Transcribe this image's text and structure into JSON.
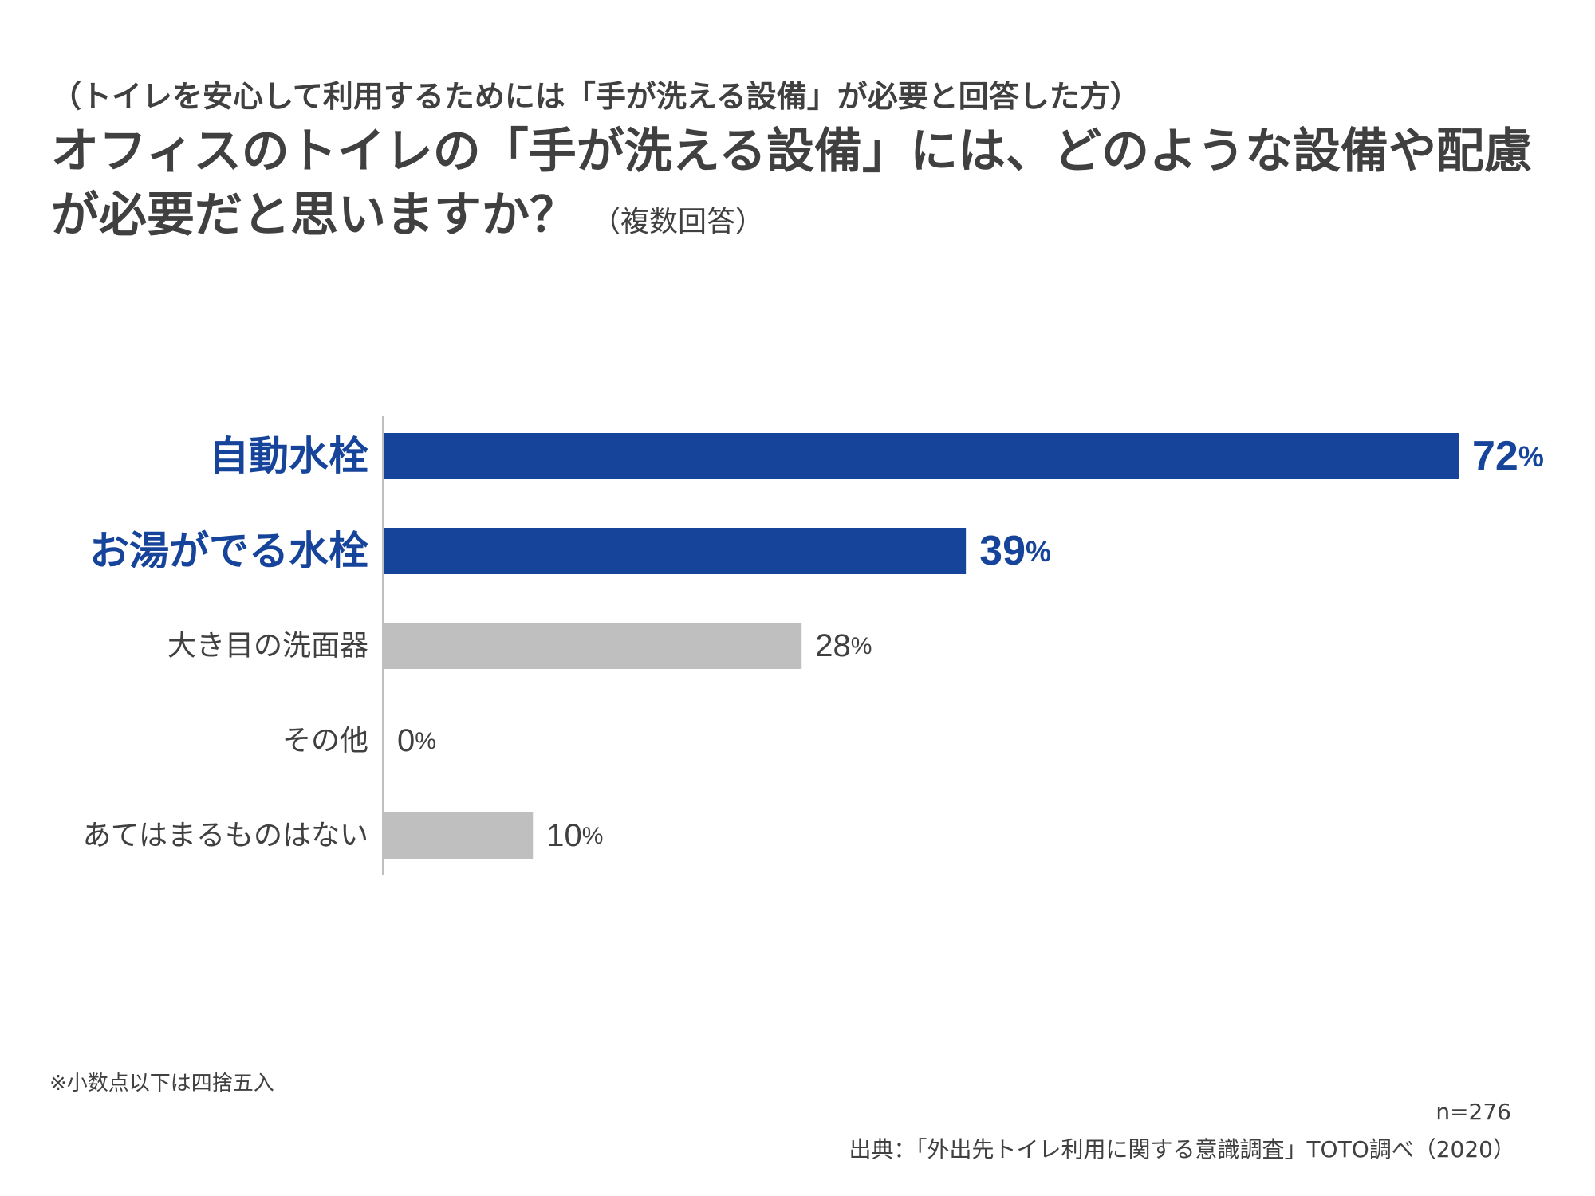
{
  "header": {
    "subtitle": "（トイレを安心して利用するためには「手が洗える設備」が必要と回答した方）",
    "title": "オフィスのトイレの「手が洗える設備」には、どのような設備や配慮が必要だと思いますか？",
    "title_note": "（複数回答）"
  },
  "chart_data": {
    "type": "bar",
    "orientation": "horizontal",
    "categories": [
      "自動水栓",
      "お湯がでる水栓",
      "大き目の洗面器",
      "その他",
      "あてはまるものはない"
    ],
    "values": [
      72,
      39,
      28,
      0,
      10
    ],
    "value_labels": [
      "72",
      "39",
      "28",
      "0",
      "10"
    ],
    "unit": "%",
    "xlim": [
      0,
      72
    ],
    "highlight": [
      true,
      true,
      false,
      false,
      false
    ],
    "colors": {
      "highlight": "#16449b",
      "normal": "#bfbfbf",
      "axis": "#bfbfbf",
      "highlight_text": "#16449b",
      "normal_text": "#404040"
    },
    "grid": false,
    "legend": "none"
  },
  "footer": {
    "footnote": "※小数点以下は四捨五入",
    "sample": "n=276",
    "source": "出典：「外出先トイレ利用に関する意識調査」TOTO調べ（2020）"
  }
}
